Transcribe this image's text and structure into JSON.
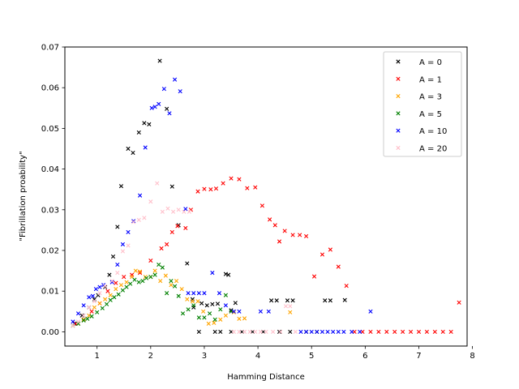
{
  "chart_data": {
    "type": "scatter",
    "xlabel": "Hamming Distance",
    "ylabel": "\"Fibrillation proability\"",
    "xlim": [
      0.4,
      7.9
    ],
    "ylim": [
      -0.0035,
      0.07
    ],
    "xticks": [
      "1",
      "2",
      "3",
      "4",
      "5",
      "6",
      "7",
      "8"
    ],
    "yticks": [
      "0.00",
      "0.01",
      "0.02",
      "0.03",
      "0.04",
      "0.05",
      "0.06",
      "0.07"
    ],
    "grid": false,
    "legend_position": "top-right",
    "marker": "x",
    "series": [
      {
        "name": "A = 0",
        "color": "#000000",
        "points": [
          [
            0.58,
            0.002
          ],
          [
            0.72,
            0.004
          ],
          [
            0.85,
            0.006
          ],
          [
            0.95,
            0.008
          ],
          [
            1.02,
            0.009
          ],
          [
            1.15,
            0.011
          ],
          [
            1.23,
            0.014
          ],
          [
            1.3,
            0.0185
          ],
          [
            1.38,
            0.0258
          ],
          [
            1.45,
            0.0358
          ],
          [
            1.58,
            0.045
          ],
          [
            1.67,
            0.044
          ],
          [
            1.78,
            0.049
          ],
          [
            1.88,
            0.0513
          ],
          [
            1.97,
            0.051
          ],
          [
            2.17,
            0.0666
          ],
          [
            2.3,
            0.0548
          ],
          [
            2.4,
            0.0357
          ],
          [
            2.52,
            0.0262
          ],
          [
            2.68,
            0.0168
          ],
          [
            2.78,
            0.008
          ],
          [
            2.8,
            0.006
          ],
          [
            2.9,
            0.0
          ],
          [
            2.95,
            0.007
          ],
          [
            3.05,
            0.0065
          ],
          [
            3.15,
            0.0068
          ],
          [
            3.25,
            0.0069
          ],
          [
            3.4,
            0.0142
          ],
          [
            3.45,
            0.014
          ],
          [
            3.5,
            0.0053
          ],
          [
            3.58,
            0.0071
          ],
          [
            4.25,
            0.0077
          ],
          [
            4.35,
            0.0077
          ],
          [
            4.55,
            0.0077
          ],
          [
            4.65,
            0.0077
          ],
          [
            5.25,
            0.0077
          ],
          [
            5.35,
            0.0077
          ],
          [
            5.62,
            0.0078
          ],
          [
            3.2,
            0.0
          ],
          [
            3.3,
            0.0
          ],
          [
            3.5,
            0.0
          ],
          [
            3.7,
            0.0
          ],
          [
            3.9,
            0.0
          ],
          [
            4.1,
            0.0
          ],
          [
            4.4,
            0.0
          ],
          [
            4.6,
            0.0
          ],
          [
            4.9,
            0.0
          ],
          [
            5.1,
            0.0
          ]
        ]
      },
      {
        "name": "A = 1",
        "color": "#ff0000",
        "points": [
          [
            0.6,
            0.002
          ],
          [
            0.75,
            0.003
          ],
          [
            0.9,
            0.005
          ],
          [
            1.05,
            0.007
          ],
          [
            1.2,
            0.01
          ],
          [
            1.35,
            0.012
          ],
          [
            1.5,
            0.0135
          ],
          [
            1.65,
            0.014
          ],
          [
            1.8,
            0.0145
          ],
          [
            2.0,
            0.0175
          ],
          [
            2.2,
            0.0205
          ],
          [
            2.3,
            0.0215
          ],
          [
            2.4,
            0.0245
          ],
          [
            2.5,
            0.026
          ],
          [
            2.65,
            0.0255
          ],
          [
            2.75,
            0.03
          ],
          [
            2.88,
            0.0345
          ],
          [
            3.0,
            0.0351
          ],
          [
            3.12,
            0.035
          ],
          [
            3.22,
            0.0352
          ],
          [
            3.35,
            0.0365
          ],
          [
            3.5,
            0.0377
          ],
          [
            3.65,
            0.0375
          ],
          [
            3.8,
            0.0353
          ],
          [
            3.95,
            0.0355
          ],
          [
            4.08,
            0.031
          ],
          [
            4.22,
            0.0276
          ],
          [
            4.32,
            0.0262
          ],
          [
            4.4,
            0.0222
          ],
          [
            4.5,
            0.0248
          ],
          [
            4.65,
            0.0238
          ],
          [
            4.78,
            0.0238
          ],
          [
            4.9,
            0.0235
          ],
          [
            5.05,
            0.0136
          ],
          [
            5.2,
            0.019
          ],
          [
            5.35,
            0.0202
          ],
          [
            5.5,
            0.016
          ],
          [
            5.65,
            0.0113
          ],
          [
            5.8,
            0.0
          ],
          [
            5.95,
            0.0
          ],
          [
            6.1,
            0.0
          ],
          [
            6.25,
            0.0
          ],
          [
            6.4,
            0.0
          ],
          [
            6.55,
            0.0
          ],
          [
            6.7,
            0.0
          ],
          [
            6.85,
            0.0
          ],
          [
            7.0,
            0.0
          ],
          [
            7.15,
            0.0
          ],
          [
            7.3,
            0.0
          ],
          [
            7.45,
            0.0
          ],
          [
            7.6,
            0.0
          ],
          [
            7.75,
            0.0072
          ]
        ]
      },
      {
        "name": "A = 3",
        "color": "#ffa500",
        "points": [
          [
            0.55,
            0.0015
          ],
          [
            0.65,
            0.002
          ],
          [
            0.75,
            0.003
          ],
          [
            0.85,
            0.004
          ],
          [
            0.95,
            0.006
          ],
          [
            1.05,
            0.007
          ],
          [
            1.15,
            0.008
          ],
          [
            1.25,
            0.009
          ],
          [
            1.35,
            0.0105
          ],
          [
            1.45,
            0.0115
          ],
          [
            1.55,
            0.0122
          ],
          [
            1.65,
            0.0135
          ],
          [
            1.72,
            0.015
          ],
          [
            1.8,
            0.0148
          ],
          [
            1.9,
            0.0135
          ],
          [
            2.0,
            0.0135
          ],
          [
            2.08,
            0.015
          ],
          [
            2.18,
            0.0125
          ],
          [
            2.28,
            0.0138
          ],
          [
            2.38,
            0.0115
          ],
          [
            2.48,
            0.0125
          ],
          [
            2.58,
            0.0105
          ],
          [
            2.68,
            0.008
          ],
          [
            2.78,
            0.0075
          ],
          [
            2.88,
            0.0075
          ],
          [
            2.98,
            0.005
          ],
          [
            3.08,
            0.002
          ],
          [
            3.18,
            0.0022
          ],
          [
            3.3,
            0.003
          ],
          [
            3.4,
            0.004
          ],
          [
            3.55,
            0.0048
          ],
          [
            3.65,
            0.0032
          ],
          [
            3.75,
            0.0033
          ],
          [
            4.6,
            0.0048
          ]
        ]
      },
      {
        "name": "A = 5",
        "color": "#008000",
        "points": [
          [
            0.55,
            0.0015
          ],
          [
            0.65,
            0.002
          ],
          [
            0.75,
            0.0028
          ],
          [
            0.82,
            0.0032
          ],
          [
            0.9,
            0.0038
          ],
          [
            1.0,
            0.0048
          ],
          [
            1.1,
            0.0058
          ],
          [
            1.18,
            0.0068
          ],
          [
            1.25,
            0.0078
          ],
          [
            1.32,
            0.0085
          ],
          [
            1.4,
            0.0092
          ],
          [
            1.48,
            0.0102
          ],
          [
            1.55,
            0.011
          ],
          [
            1.62,
            0.0118
          ],
          [
            1.7,
            0.0128
          ],
          [
            1.78,
            0.0122
          ],
          [
            1.85,
            0.0125
          ],
          [
            1.92,
            0.0132
          ],
          [
            2.0,
            0.0135
          ],
          [
            2.08,
            0.014
          ],
          [
            2.15,
            0.0165
          ],
          [
            2.22,
            0.0158
          ],
          [
            2.3,
            0.0095
          ],
          [
            2.38,
            0.0125
          ],
          [
            2.45,
            0.0112
          ],
          [
            2.52,
            0.0088
          ],
          [
            2.6,
            0.0045
          ],
          [
            2.7,
            0.0055
          ],
          [
            2.8,
            0.0065
          ],
          [
            2.9,
            0.0035
          ],
          [
            3.0,
            0.0035
          ],
          [
            3.1,
            0.0045
          ],
          [
            3.2,
            0.003
          ],
          [
            3.3,
            0.0055
          ],
          [
            3.4,
            0.009
          ],
          [
            3.5,
            0.005
          ]
        ]
      },
      {
        "name": "A = 10",
        "color": "#0000ff",
        "points": [
          [
            0.55,
            0.0025
          ],
          [
            0.65,
            0.0045
          ],
          [
            0.75,
            0.0065
          ],
          [
            0.85,
            0.0085
          ],
          [
            0.92,
            0.0088
          ],
          [
            0.98,
            0.0105
          ],
          [
            1.05,
            0.011
          ],
          [
            1.12,
            0.0115
          ],
          [
            1.28,
            0.0122
          ],
          [
            1.38,
            0.0165
          ],
          [
            1.48,
            0.0215
          ],
          [
            1.58,
            0.0245
          ],
          [
            1.68,
            0.0272
          ],
          [
            1.8,
            0.0335
          ],
          [
            1.9,
            0.0453
          ],
          [
            2.02,
            0.055
          ],
          [
            2.08,
            0.0553
          ],
          [
            2.15,
            0.056
          ],
          [
            2.25,
            0.0597
          ],
          [
            2.35,
            0.0537
          ],
          [
            2.45,
            0.062
          ],
          [
            2.55,
            0.0591
          ],
          [
            2.65,
            0.0302
          ],
          [
            2.7,
            0.0095
          ],
          [
            2.8,
            0.0095
          ],
          [
            2.9,
            0.0095
          ],
          [
            3.0,
            0.0095
          ],
          [
            3.15,
            0.0145
          ],
          [
            3.28,
            0.0095
          ],
          [
            3.4,
            0.0065
          ],
          [
            3.55,
            0.005
          ],
          [
            3.65,
            0.005
          ],
          [
            4.05,
            0.005
          ],
          [
            4.2,
            0.005
          ],
          [
            4.8,
            0.0
          ],
          [
            4.9,
            0.0
          ],
          [
            5.0,
            0.0
          ],
          [
            5.1,
            0.0
          ],
          [
            5.2,
            0.0
          ],
          [
            5.3,
            0.0
          ],
          [
            5.4,
            0.0
          ],
          [
            5.5,
            0.0
          ],
          [
            5.6,
            0.0
          ],
          [
            5.75,
            0.0
          ],
          [
            5.9,
            0.0
          ],
          [
            6.1,
            0.005
          ]
        ]
      },
      {
        "name": "A = 20",
        "color": "#ffc0cb",
        "points": [
          [
            0.55,
            0.0015
          ],
          [
            0.65,
            0.0025
          ],
          [
            0.75,
            0.004
          ],
          [
            0.85,
            0.006
          ],
          [
            0.95,
            0.0075
          ],
          [
            1.05,
            0.0095
          ],
          [
            1.15,
            0.0112
          ],
          [
            1.28,
            0.0125
          ],
          [
            1.38,
            0.0145
          ],
          [
            1.48,
            0.0198
          ],
          [
            1.58,
            0.0212
          ],
          [
            1.68,
            0.027
          ],
          [
            1.78,
            0.0275
          ],
          [
            1.88,
            0.028
          ],
          [
            2.0,
            0.032
          ],
          [
            2.12,
            0.0365
          ],
          [
            2.22,
            0.0295
          ],
          [
            2.32,
            0.0303
          ],
          [
            2.42,
            0.0295
          ],
          [
            2.52,
            0.03
          ],
          [
            2.62,
            0.0295
          ],
          [
            2.72,
            0.0295
          ],
          [
            3.55,
            0.0
          ],
          [
            3.65,
            0.0
          ],
          [
            3.75,
            0.0
          ],
          [
            3.85,
            0.0
          ],
          [
            3.95,
            0.0
          ],
          [
            4.05,
            0.0
          ],
          [
            4.15,
            0.0
          ],
          [
            4.28,
            0.0
          ],
          [
            4.42,
            0.0
          ],
          [
            4.52,
            0.0063
          ],
          [
            4.6,
            0.0063
          ],
          [
            4.7,
            0.0
          ]
        ]
      }
    ]
  }
}
